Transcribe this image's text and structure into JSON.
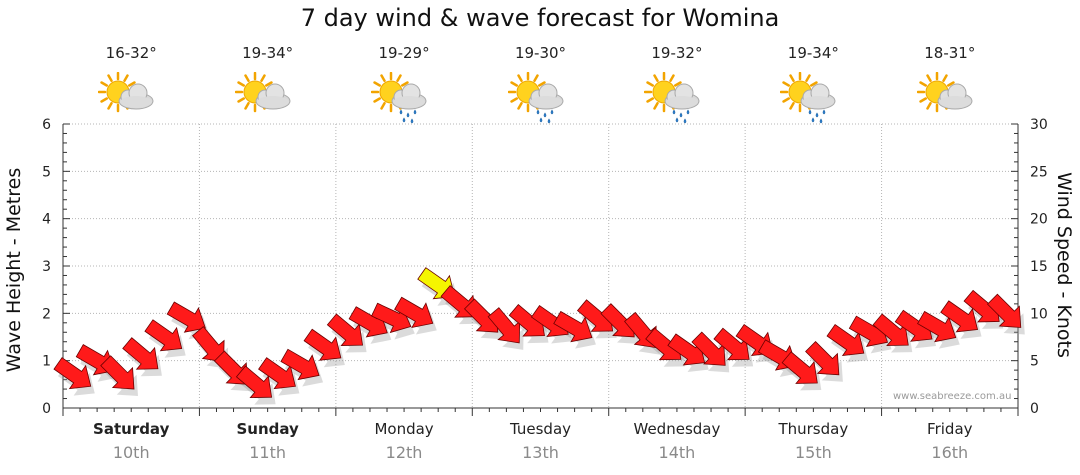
{
  "chart_data": {
    "type": "line",
    "title": "7 day wind & wave forecast for Womina",
    "ylabel_left": "Wave Height - Metres",
    "ylabel_right": "Wind Speed - Knots",
    "ylim_left": [
      0,
      6
    ],
    "ylim_right": [
      0,
      30
    ],
    "yticks_left": [
      "0",
      "1",
      "2",
      "3",
      "4",
      "5",
      "6"
    ],
    "yticks_right": [
      "0",
      "5",
      "10",
      "15",
      "20",
      "25",
      "30"
    ],
    "grid": true,
    "days": [
      {
        "day": "Saturday",
        "date": "10th",
        "temp": "16-32°",
        "icon": "partly-cloudy-icon",
        "bold": true
      },
      {
        "day": "Sunday",
        "date": "11th",
        "temp": "19-34°",
        "icon": "partly-cloudy-icon",
        "bold": true
      },
      {
        "day": "Monday",
        "date": "12th",
        "temp": "19-29°",
        "icon": "partly-cloudy-showers-icon",
        "bold": false
      },
      {
        "day": "Tuesday",
        "date": "13th",
        "temp": "19-30°",
        "icon": "partly-cloudy-showers-icon",
        "bold": false
      },
      {
        "day": "Wednesday",
        "date": "14th",
        "temp": "19-32°",
        "icon": "partly-cloudy-showers-icon",
        "bold": false
      },
      {
        "day": "Thursday",
        "date": "15th",
        "temp": "19-34°",
        "icon": "partly-cloudy-showers-icon",
        "bold": false
      },
      {
        "day": "Friday",
        "date": "16th",
        "temp": "18-31°",
        "icon": "partly-cloudy-icon",
        "bold": false
      }
    ],
    "series": [
      {
        "name": "Wind Speed",
        "unit": "knots",
        "color": "#ff1a1a",
        "peak_color": "#f5f500",
        "x_hours_from_start": [
          2,
          6,
          10,
          14,
          18,
          22,
          26,
          30,
          34,
          38,
          42,
          46,
          50,
          54,
          58,
          62,
          66,
          70,
          74,
          78,
          82,
          86,
          90,
          94,
          98,
          102,
          106,
          110,
          114,
          118,
          122,
          126,
          130,
          134,
          138,
          142,
          146,
          150,
          154,
          158,
          162,
          166
        ],
        "values": [
          3.5,
          5,
          3.5,
          5.5,
          7.5,
          9.5,
          6.5,
          4,
          2.5,
          3.5,
          4.5,
          6.5,
          8,
          9,
          9.5,
          10,
          13,
          11,
          9.5,
          8.5,
          9,
          9,
          8.5,
          9.5,
          9,
          8,
          6.5,
          6,
          6,
          6.5,
          7,
          5.5,
          4,
          5,
          7,
          8,
          8,
          8.5,
          8.5,
          9.5,
          10.5,
          10
        ]
      }
    ]
  },
  "watermark": "www.seabreeze.com.au",
  "colors": {
    "grid": "#b5b5b5",
    "axis": "#333333",
    "shadow": "#999999"
  }
}
